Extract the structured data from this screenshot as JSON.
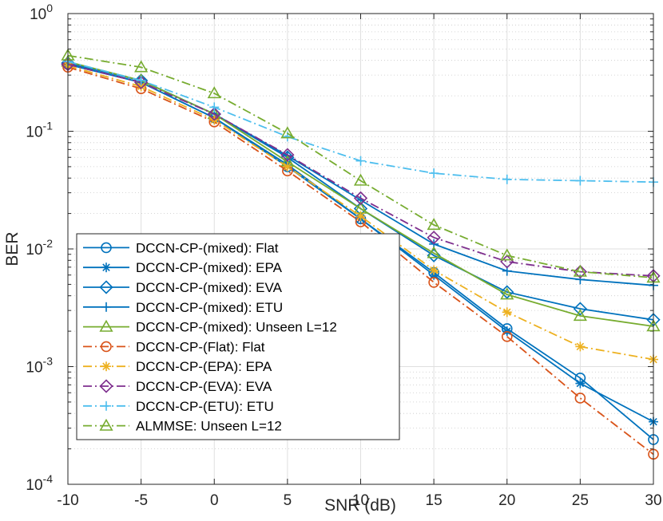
{
  "chart_data": {
    "type": "line",
    "yscale": "log",
    "xlabel": "SNR (dB)",
    "ylabel": "BER",
    "xlim": [
      -10,
      30
    ],
    "ylim": [
      0.0001,
      1
    ],
    "grid": true,
    "legend_position": "bottom-left",
    "x": [
      -10,
      -5,
      0,
      5,
      10,
      15,
      20,
      25,
      30
    ],
    "xticks": [
      "-10",
      "-5",
      "0",
      "5",
      "10",
      "15",
      "20",
      "25",
      "30"
    ],
    "yticks": [
      {
        "value": 0.0001,
        "base": "10",
        "exp": "-4"
      },
      {
        "value": 0.001,
        "base": "10",
        "exp": "-3"
      },
      {
        "value": 0.01,
        "base": "10",
        "exp": "-2"
      },
      {
        "value": 0.1,
        "base": "10",
        "exp": "-1"
      },
      {
        "value": 1,
        "base": "10",
        "exp": "0"
      }
    ],
    "series": [
      {
        "name": "DCCN-CP-(mixed): Flat",
        "color": "#0072BD",
        "dash": "solid",
        "marker": "circle",
        "values": [
          0.37,
          0.26,
          0.13,
          0.05,
          0.018,
          0.0063,
          0.0021,
          0.0008,
          0.00024
        ]
      },
      {
        "name": "DCCN-CP-(mixed): EPA",
        "color": "#0072BD",
        "dash": "solid",
        "marker": "asterisk",
        "values": [
          0.37,
          0.26,
          0.13,
          0.052,
          0.018,
          0.006,
          0.002,
          0.00072,
          0.00034
        ]
      },
      {
        "name": "DCCN-CP-(mixed): EVA",
        "color": "#0072BD",
        "dash": "solid",
        "marker": "diamond",
        "values": [
          0.38,
          0.27,
          0.14,
          0.06,
          0.022,
          0.0088,
          0.0043,
          0.0031,
          0.0025
        ]
      },
      {
        "name": "DCCN-CP-(mixed): ETU",
        "color": "#0072BD",
        "dash": "solid",
        "marker": "plus",
        "values": [
          0.38,
          0.27,
          0.14,
          0.062,
          0.026,
          0.011,
          0.0065,
          0.0055,
          0.0049
        ]
      },
      {
        "name": "DCCN-CP-(mixed): Unseen L=12",
        "color": "#77AC30",
        "dash": "solid",
        "marker": "triangle",
        "values": [
          0.39,
          0.27,
          0.14,
          0.055,
          0.022,
          0.0092,
          0.0041,
          0.0027,
          0.0022
        ]
      },
      {
        "name": "DCCN-CP-(Flat): Flat",
        "color": "#D95319",
        "dash": "dashdot",
        "marker": "circle",
        "values": [
          0.35,
          0.23,
          0.12,
          0.046,
          0.017,
          0.0052,
          0.0018,
          0.00054,
          0.00018
        ]
      },
      {
        "name": "DCCN-CP-(EPA): EPA",
        "color": "#EDB120",
        "dash": "dashdot",
        "marker": "asterisk",
        "values": [
          0.36,
          0.24,
          0.125,
          0.05,
          0.019,
          0.0066,
          0.0029,
          0.00148,
          0.00115
        ]
      },
      {
        "name": "DCCN-CP-(EVA): EVA",
        "color": "#7E2F8E",
        "dash": "dashdot",
        "marker": "diamond",
        "values": [
          0.37,
          0.26,
          0.14,
          0.063,
          0.027,
          0.0125,
          0.0078,
          0.0064,
          0.0059
        ]
      },
      {
        "name": "DCCN-CP-(ETU): ETU",
        "color": "#4DBEEE",
        "dash": "dashdot",
        "marker": "plus",
        "values": [
          0.39,
          0.27,
          0.16,
          0.09,
          0.056,
          0.044,
          0.039,
          0.038,
          0.037
        ]
      },
      {
        "name": "ALMMSE: Unseen L=12",
        "color": "#77AC30",
        "dash": "dashdot",
        "marker": "triangle",
        "values": [
          0.44,
          0.35,
          0.21,
          0.096,
          0.038,
          0.016,
          0.0088,
          0.0064,
          0.0057
        ]
      }
    ]
  }
}
